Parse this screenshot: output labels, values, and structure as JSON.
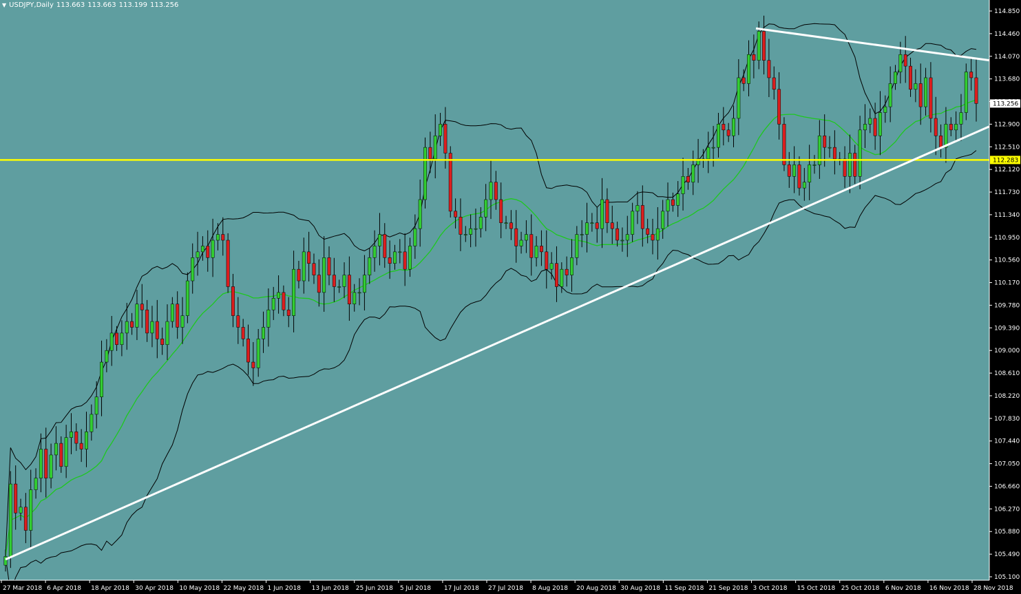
{
  "header": {
    "symbol_timeframe": "USDJPY,Daily",
    "open": "113.663",
    "high": "113.663",
    "low": "113.199",
    "close": "113.256"
  },
  "colors": {
    "background": "#5F9EA0",
    "axis_panel": "#000000",
    "text": "#FFFFFF",
    "bull_candle": "#32CD32",
    "bear_candle": "#DC1E1E",
    "wick": "#000000",
    "bollinger": "#000000",
    "middle_band": "#1EC81E",
    "horizontal_line": "#FFFF00",
    "trend_lines": "#FFFFFF"
  },
  "price_axis": {
    "ticks": [
      "114.850",
      "114.460",
      "114.070",
      "113.680",
      "113.290",
      "112.900",
      "112.510",
      "112.120",
      "111.730",
      "111.340",
      "110.950",
      "110.560",
      "110.170",
      "109.780",
      "109.390",
      "109.000",
      "108.610",
      "108.220",
      "107.830",
      "107.440",
      "107.050",
      "106.660",
      "106.270",
      "105.880",
      "105.490",
      "105.100"
    ],
    "current_price_label": "113.256",
    "level_label": "112.283"
  },
  "time_axis": {
    "labels": [
      "27 Mar 2018",
      "6 Apr 2018",
      "18 Apr 2018",
      "30 Apr 2018",
      "10 May 2018",
      "22 May 2018",
      "1 Jun 2018",
      "13 Jun 2018",
      "25 Jun 2018",
      "5 Jul 2018",
      "17 Jul 2018",
      "27 Jul 2018",
      "8 Aug 2018",
      "20 Aug 2018",
      "30 Aug 2018",
      "11 Sep 2018",
      "21 Sep 2018",
      "3 Oct 2018",
      "15 Oct 2018",
      "25 Oct 2018",
      "6 Nov 2018",
      "16 Nov 2018",
      "28 Nov 2018"
    ]
  },
  "chart_data": {
    "type": "candlestick",
    "symbol": "USDJPY",
    "timeframe": "Daily",
    "ylim": [
      105.1,
      114.85
    ],
    "close_series": [
      105.45,
      106.7,
      106.2,
      106.3,
      105.9,
      106.6,
      106.8,
      107.3,
      106.8,
      107.2,
      107.4,
      107.0,
      107.5,
      107.6,
      107.4,
      107.3,
      107.6,
      107.9,
      108.2,
      108.8,
      109.0,
      109.3,
      109.1,
      109.3,
      109.5,
      109.4,
      109.8,
      109.7,
      109.3,
      109.5,
      109.2,
      109.1,
      109.5,
      109.8,
      109.4,
      109.6,
      110.2,
      110.6,
      110.7,
      110.8,
      110.6,
      110.9,
      111.0,
      110.9,
      110.1,
      109.6,
      109.4,
      109.2,
      108.8,
      108.7,
      109.2,
      109.4,
      109.7,
      109.9,
      110.0,
      109.7,
      109.6,
      110.4,
      110.2,
      110.7,
      110.5,
      110.3,
      110.0,
      110.6,
      110.3,
      110.1,
      110.1,
      110.3,
      109.8,
      110.0,
      110.0,
      110.3,
      110.6,
      110.8,
      111.0,
      110.6,
      110.5,
      110.7,
      110.7,
      110.4,
      110.8,
      111.1,
      111.6,
      112.5,
      112.3,
      112.7,
      112.9,
      112.4,
      111.4,
      111.3,
      111.0,
      111.0,
      111.1,
      111.1,
      111.3,
      111.6,
      111.9,
      111.6,
      111.2,
      111.2,
      111.1,
      110.8,
      110.9,
      111.0,
      110.6,
      110.8,
      110.7,
      110.4,
      110.5,
      110.1,
      110.4,
      110.3,
      110.6,
      111.0,
      111.0,
      111.2,
      111.2,
      111.1,
      111.6,
      111.2,
      111.1,
      110.9,
      110.9,
      111.0,
      111.4,
      111.5,
      111.1,
      111.0,
      110.9,
      111.1,
      111.4,
      111.6,
      111.5,
      111.7,
      112.0,
      111.9,
      112.2,
      112.3,
      112.3,
      112.5,
      112.5,
      112.9,
      112.8,
      112.7,
      113.0,
      113.7,
      113.6,
      114.1,
      114.0,
      114.5,
      114.0,
      113.7,
      113.5,
      112.9,
      112.2,
      112.0,
      112.2,
      111.8,
      111.9,
      112.2,
      112.2,
      112.7,
      112.5,
      112.5,
      112.3,
      112.3,
      112.0,
      112.4,
      112.0,
      112.8,
      112.9,
      113.0,
      112.7,
      113.1,
      113.2,
      113.6,
      113.8,
      114.1,
      113.9,
      113.5,
      113.6,
      113.2,
      113.7,
      113.0,
      112.7,
      112.5,
      112.9,
      112.8,
      112.9,
      113.1,
      113.8,
      113.7,
      113.256
    ]
  }
}
